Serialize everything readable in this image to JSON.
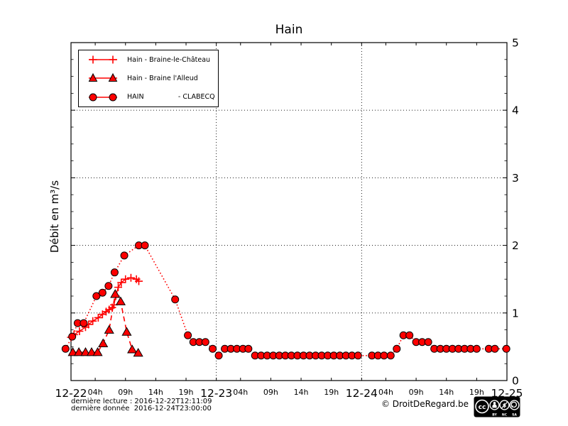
{
  "title": "Hain",
  "ylabel": "Débit en m³/s",
  "footer": {
    "line1": "dernière lecture : 2016-12-22T12:11:09",
    "line2": "dernière donnée  2016-12-24T23:00:00",
    "copyright": "© DroitDeRegard.be"
  },
  "license": {
    "name": "cc-by-nc-sa-badge",
    "cc": "cc",
    "by": "BY",
    "nc": "NC",
    "sa": "SA"
  },
  "colors": {
    "series_red": "#ff0000",
    "marker_edge": "#000000",
    "axis": "#000000",
    "background": "#ffffff"
  },
  "chart_data": {
    "type": "line",
    "title": "Hain",
    "xlabel": "",
    "ylabel": "Débit en m³/s",
    "ylim": [
      0,
      5
    ],
    "xlim_hours": [
      0,
      72
    ],
    "x_time_origin": "2016-12-22 00:00",
    "grid": {
      "h_lines": [
        1,
        2,
        3,
        4
      ],
      "v_lines": [
        24,
        48
      ],
      "style": "dotted"
    },
    "y_ticks": [
      0,
      1,
      2,
      3,
      4,
      5
    ],
    "y_minor_step": 0.25,
    "y_tick_side": "right",
    "x_day_ticks": [
      {
        "hour": 0,
        "label": "12-22"
      },
      {
        "hour": 24,
        "label": "12-23"
      },
      {
        "hour": 48,
        "label": "12-24"
      },
      {
        "hour": 72,
        "label": "12-25"
      }
    ],
    "x_hour_ticks": [
      {
        "hour": 4,
        "label": "04h"
      },
      {
        "hour": 9,
        "label": "09h"
      },
      {
        "hour": 14,
        "label": "14h"
      },
      {
        "hour": 19,
        "label": "19h"
      },
      {
        "hour": 28,
        "label": "04h"
      },
      {
        "hour": 33,
        "label": "09h"
      },
      {
        "hour": 38,
        "label": "14h"
      },
      {
        "hour": 43,
        "label": "19h"
      },
      {
        "hour": 52,
        "label": "04h"
      },
      {
        "hour": 57,
        "label": "09h"
      },
      {
        "hour": 62,
        "label": "14h"
      },
      {
        "hour": 67,
        "label": "19h"
      }
    ],
    "legend": {
      "position": "top-left",
      "entries": [
        {
          "label": "Hain - Braine-le-Château",
          "marker": "plus",
          "linestyle": "solid"
        },
        {
          "label": "Hain - Braine l'Alleud",
          "marker": "triangle",
          "linestyle": "dashed"
        },
        {
          "label": "HAIN                - CLABECQ",
          "marker": "circle",
          "linestyle": "dotted"
        }
      ]
    },
    "series": [
      {
        "name": "Hain - Braine-le-Château",
        "marker": "plus",
        "linestyle": "solid",
        "color": "#ff0000",
        "marker_edge": "#ff0000",
        "points": [
          [
            0,
            0.64
          ],
          [
            0.5,
            0.68
          ],
          [
            1.4,
            0.73
          ],
          [
            2.4,
            0.79
          ],
          [
            2.9,
            0.83
          ],
          [
            3.6,
            0.88
          ],
          [
            4.5,
            0.93
          ],
          [
            5.2,
            0.98
          ],
          [
            5.8,
            1.02
          ],
          [
            6.3,
            1.05
          ],
          [
            6.8,
            1.08
          ],
          [
            7.1,
            1.12
          ],
          [
            7.4,
            1.25
          ],
          [
            7.8,
            1.38
          ],
          [
            8.3,
            1.45
          ],
          [
            9.0,
            1.5
          ],
          [
            9.9,
            1.52
          ],
          [
            10.8,
            1.5
          ],
          [
            11.2,
            1.47
          ]
        ]
      },
      {
        "name": "Hain - Braine l'Alleud",
        "marker": "triangle",
        "linestyle": "dashed",
        "color": "#ff0000",
        "marker_edge": "#000000",
        "points": [
          [
            0.3,
            0.42
          ],
          [
            1.3,
            0.42
          ],
          [
            2.4,
            0.42
          ],
          [
            3.4,
            0.42
          ],
          [
            4.4,
            0.42
          ],
          [
            5.3,
            0.55
          ],
          [
            6.3,
            0.75
          ],
          [
            7.3,
            1.28
          ],
          [
            8.2,
            1.17
          ],
          [
            9.2,
            0.72
          ],
          [
            10.1,
            0.46
          ],
          [
            11.1,
            0.41
          ]
        ]
      },
      {
        "name": "HAIN - CLABECQ",
        "marker": "circle",
        "linestyle": "dotted",
        "color": "#ff0000",
        "marker_edge": "#000000",
        "points": [
          [
            -0.9,
            0.47
          ],
          [
            0.2,
            0.65
          ],
          [
            1.1,
            0.85
          ],
          [
            2.1,
            0.85
          ],
          [
            4.2,
            1.25
          ],
          [
            5.2,
            1.3
          ],
          [
            6.2,
            1.4
          ],
          [
            7.2,
            1.6
          ],
          [
            8.8,
            1.85
          ],
          [
            11.2,
            2.0
          ],
          [
            12.2,
            2.0
          ],
          [
            17.2,
            1.2
          ],
          [
            19.3,
            0.67
          ],
          [
            20.2,
            0.57
          ],
          [
            21.2,
            0.57
          ],
          [
            22.2,
            0.57
          ],
          [
            23.4,
            0.47
          ],
          [
            24.4,
            0.37
          ],
          [
            25.4,
            0.47
          ],
          [
            26.4,
            0.47
          ],
          [
            27.4,
            0.47
          ],
          [
            28.4,
            0.47
          ],
          [
            29.3,
            0.47
          ],
          [
            30.4,
            0.37
          ],
          [
            31.4,
            0.37
          ],
          [
            32.4,
            0.37
          ],
          [
            33.4,
            0.37
          ],
          [
            34.4,
            0.37
          ],
          [
            35.4,
            0.37
          ],
          [
            36.4,
            0.37
          ],
          [
            37.4,
            0.37
          ],
          [
            38.4,
            0.37
          ],
          [
            39.4,
            0.37
          ],
          [
            40.4,
            0.37
          ],
          [
            41.4,
            0.37
          ],
          [
            42.4,
            0.37
          ],
          [
            43.4,
            0.37
          ],
          [
            44.4,
            0.37
          ],
          [
            45.4,
            0.37
          ],
          [
            46.4,
            0.37
          ],
          [
            47.4,
            0.37
          ],
          [
            49.7,
            0.37
          ],
          [
            50.7,
            0.37
          ],
          [
            51.7,
            0.37
          ],
          [
            52.8,
            0.37
          ],
          [
            53.8,
            0.47
          ],
          [
            54.9,
            0.67
          ],
          [
            55.9,
            0.67
          ],
          [
            57,
            0.57
          ],
          [
            58,
            0.57
          ],
          [
            59,
            0.57
          ],
          [
            60,
            0.47
          ],
          [
            61,
            0.47
          ],
          [
            62,
            0.47
          ],
          [
            63,
            0.47
          ],
          [
            64,
            0.47
          ],
          [
            65,
            0.47
          ],
          [
            66,
            0.47
          ],
          [
            67,
            0.47
          ],
          [
            69,
            0.47
          ],
          [
            70,
            0.47
          ],
          [
            71.9,
            0.47
          ]
        ]
      }
    ]
  }
}
